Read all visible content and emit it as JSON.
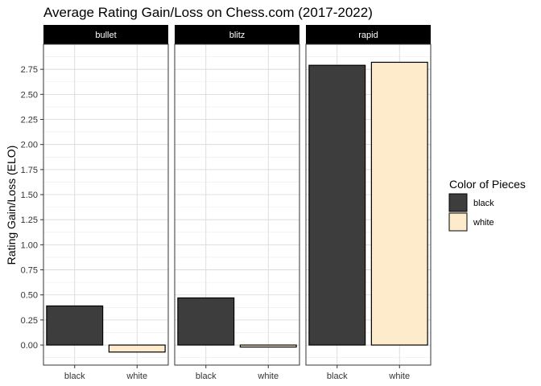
{
  "chart_data": {
    "type": "bar",
    "title": "Average Rating Gain/Loss on Chess.com (2017-2022)",
    "ylabel": "Rating Gain/Loss (ELO)",
    "xlabel": "",
    "facets": [
      "bullet",
      "blitz",
      "rapid"
    ],
    "categories": [
      "black",
      "white"
    ],
    "series": [
      {
        "facet": "bullet",
        "values": [
          0.39,
          -0.07
        ]
      },
      {
        "facet": "blitz",
        "values": [
          0.47,
          -0.02
        ]
      },
      {
        "facet": "rapid",
        "values": [
          2.79,
          2.82
        ]
      }
    ],
    "ylim": [
      -0.2,
      3.0
    ],
    "yticks": [
      0.0,
      0.25,
      0.5,
      0.75,
      1.0,
      1.25,
      1.5,
      1.75,
      2.0,
      2.25,
      2.5,
      2.75
    ],
    "ytick_labels": [
      "0.00",
      "0.25",
      "0.50",
      "0.75",
      "1.00",
      "1.25",
      "1.50",
      "1.75",
      "2.00",
      "2.25",
      "2.50",
      "2.75"
    ],
    "grid": true,
    "legend": {
      "title": "Color of Pieces",
      "position": "right",
      "items": [
        {
          "label": "black",
          "color": "#3d3d3d"
        },
        {
          "label": "white",
          "color": "#fdebcc"
        }
      ]
    },
    "colors": {
      "black": "#3d3d3d",
      "white": "#fdebcc",
      "strip_bg": "#000000",
      "strip_text": "#ffffff"
    }
  }
}
